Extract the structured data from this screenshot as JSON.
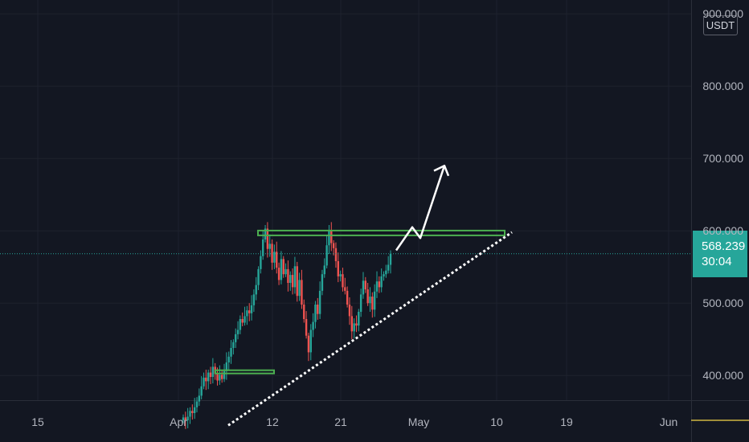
{
  "chart_data": {
    "type": "candlestick",
    "title": "",
    "x_ticks": [
      "15",
      "Apr",
      "12",
      "21",
      "May",
      "10",
      "19",
      "Jun"
    ],
    "y_ticks": [
      "900.000",
      "800.000",
      "700.000",
      "600.000",
      "500.000",
      "400.000"
    ],
    "ylim": [
      330,
      908
    ],
    "currency": "USDT",
    "last_price": "568.239",
    "countdown": "30:04",
    "grid": true,
    "colors": {
      "up": "#26a69a",
      "down": "#ef5350",
      "background": "#131722",
      "support_lines": "#4caf50",
      "projection": "#ffffff",
      "trendline": "#ffffff"
    },
    "candles_close": [
      342,
      338,
      343,
      351,
      348,
      356,
      364,
      372,
      385,
      397,
      392,
      404,
      398,
      412,
      402,
      393,
      401,
      395,
      406,
      418,
      426,
      438,
      446,
      457,
      463,
      478,
      473,
      482,
      490,
      486,
      497,
      512,
      525,
      547,
      565,
      588,
      603,
      575,
      582,
      556,
      571,
      549,
      532,
      561,
      540,
      547,
      528,
      539,
      522,
      551,
      510,
      532,
      498,
      478,
      455,
      432,
      463,
      474,
      498,
      485,
      517,
      540,
      552,
      580,
      601,
      583,
      576,
      558,
      537,
      540,
      522,
      517,
      498,
      482,
      461,
      472,
      469,
      488,
      512,
      531,
      519,
      500,
      509,
      491,
      516,
      530,
      522,
      537,
      540,
      545,
      553,
      568
    ]
  },
  "annotations": {
    "resistance": 597,
    "breakout_target": 698,
    "support_zone": 405
  }
}
